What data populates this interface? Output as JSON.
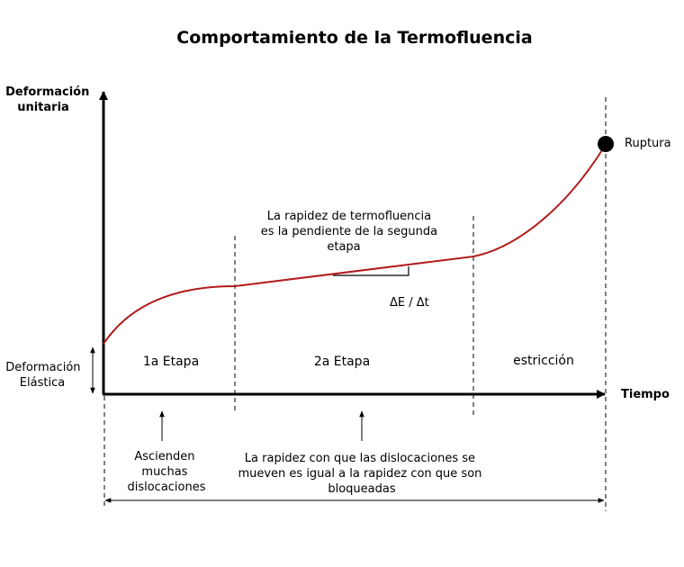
{
  "title": "Comportamiento de la Termofluencia",
  "y_axis_label": [
    "Deformación",
    "unitaria"
  ],
  "x_axis_label": "Tiempo",
  "elastic_label": [
    "Deformación",
    "Elástica"
  ],
  "rupture_label": "Ruptura",
  "slope_note": [
    "La rapidez de termofluencia",
    "es la pendiente de la segunda",
    "etapa"
  ],
  "slope_formula": "ΔE / Δt",
  "stages": [
    "1a Etapa",
    "2a Etapa",
    "estricción"
  ],
  "stage1_note": [
    "Ascienden",
    "muchas",
    "dislocaciones"
  ],
  "stage2_note": [
    "La rapidez con que las dislocaciones se",
    "mueven es igual a la rapidez con que son",
    "bloqueadas"
  ],
  "colors": {
    "curve": "#b01c1c",
    "axes": "#000000"
  }
}
